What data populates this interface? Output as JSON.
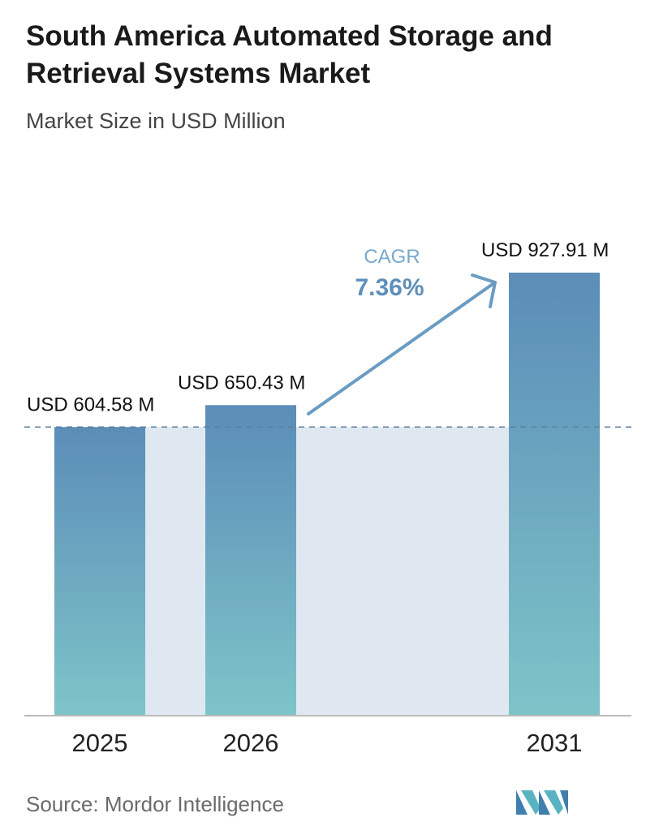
{
  "header": {
    "title": "South America Automated Storage and Retrieval Systems Market",
    "subtitle": "Market Size in USD Million"
  },
  "chart_data": {
    "type": "bar",
    "categories": [
      "2025",
      "2026",
      "2031"
    ],
    "values": [
      604.58,
      650.43,
      927.91
    ],
    "value_labels": [
      "USD 604.58 M",
      "USD 650.43 M",
      "USD 927.91 M"
    ],
    "title": "South America Automated Storage and Retrieval Systems Market",
    "subtitle": "Market Size in USD Million",
    "xlabel": "",
    "ylabel": "",
    "ylim": [
      0,
      927.91
    ],
    "grid": false,
    "annotation": {
      "label": "CAGR",
      "value": "7.36%"
    },
    "colors": {
      "bar_top": "#5b8db8",
      "bar_bottom": "#7ec4c8",
      "band": "#dfe8f1",
      "arrow": "#6a9cc3",
      "cagr_label": "#7aa8cc",
      "cagr_value": "#5e8fba",
      "dashed_line": "#5b7f9e",
      "axis": "#bbbbbb"
    }
  },
  "footer": {
    "source": "Source: Mordor Intelligence",
    "logo_icon": "mordor-intelligence-logo"
  }
}
